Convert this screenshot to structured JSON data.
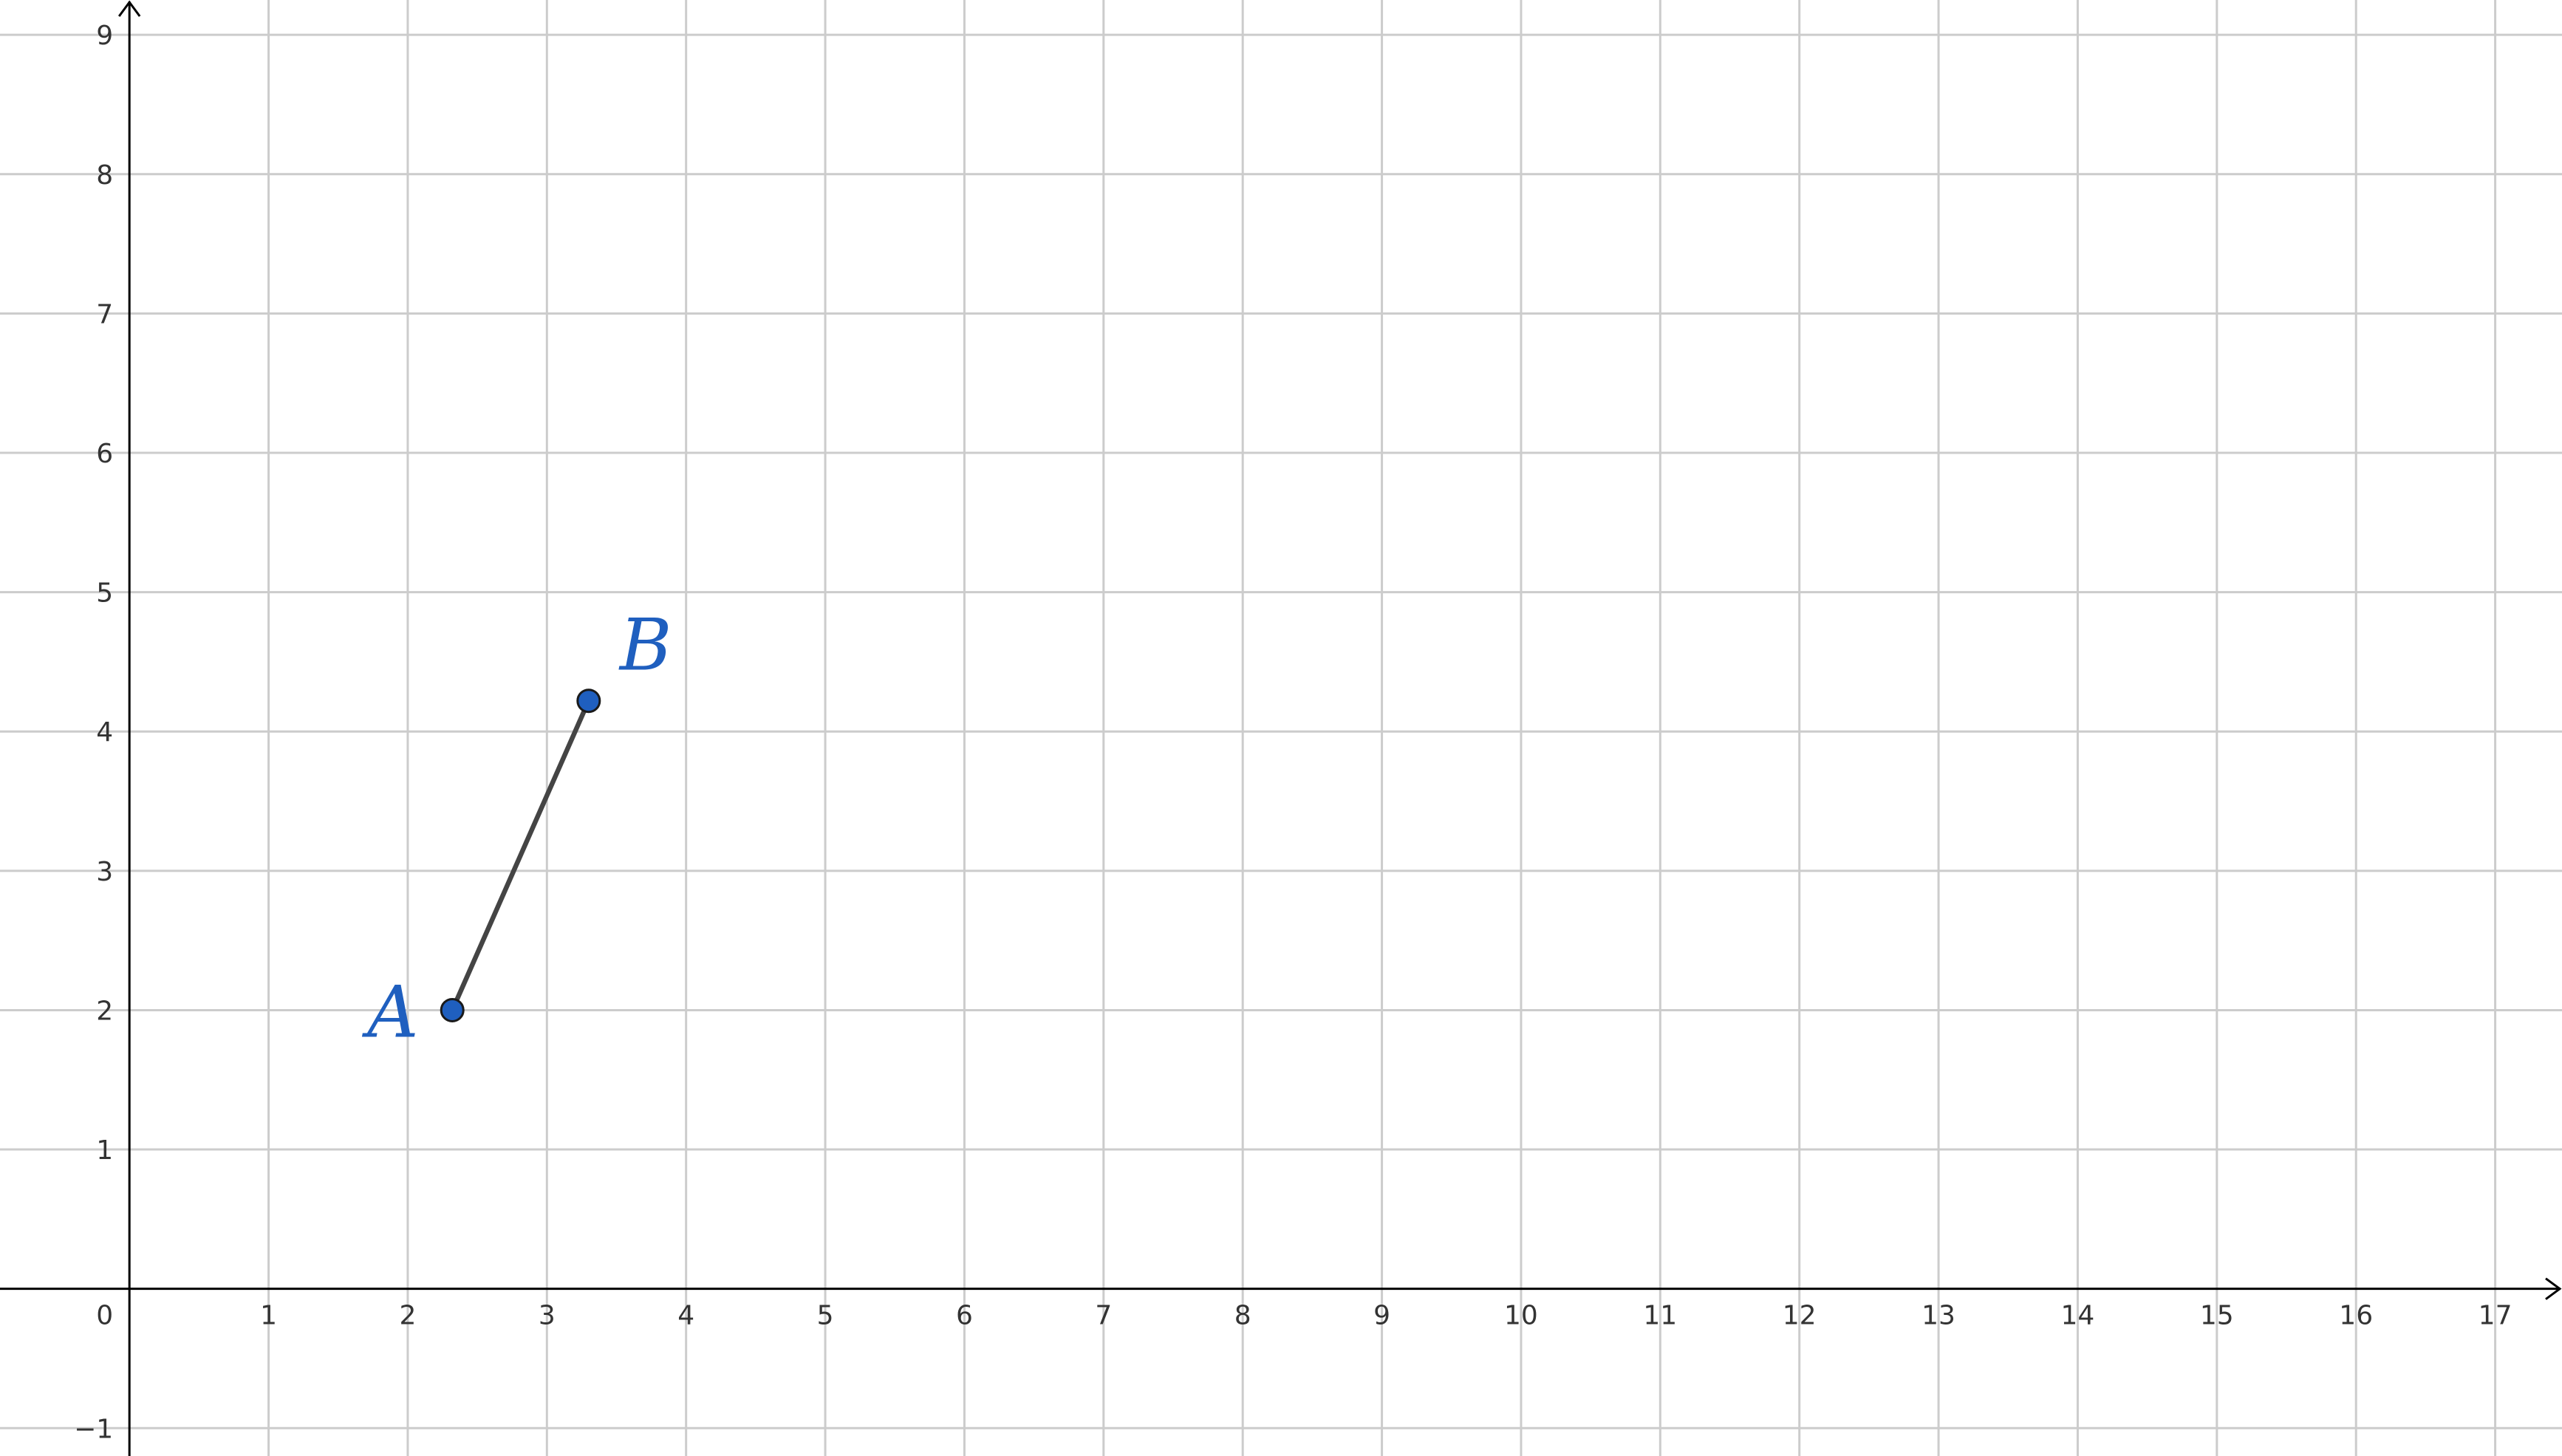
{
  "graph": {
    "x_range": [
      -0.93,
      17.48
    ],
    "y_range": [
      -1.2,
      9.25
    ],
    "grid": true,
    "x_tick_labels": [
      "1",
      "2",
      "3",
      "4",
      "5",
      "6",
      "7",
      "8",
      "9",
      "10",
      "11",
      "12",
      "13",
      "14",
      "15",
      "16",
      "17"
    ],
    "y_tick_labels": [
      "−1",
      "1",
      "2",
      "3",
      "4",
      "5",
      "6",
      "7",
      "8",
      "9"
    ],
    "origin_label": "0",
    "points": [
      {
        "name": "A",
        "x": 2.32,
        "y": 2.0
      },
      {
        "name": "B",
        "x": 3.3,
        "y": 4.22
      }
    ],
    "segments": [
      {
        "from": "A",
        "to": "B"
      }
    ],
    "colors": {
      "point_fill": "#1f5fbf",
      "point_label": "#1f5fbf",
      "segment": "#444444",
      "grid": "#cccccc",
      "axis": "#000000"
    }
  }
}
